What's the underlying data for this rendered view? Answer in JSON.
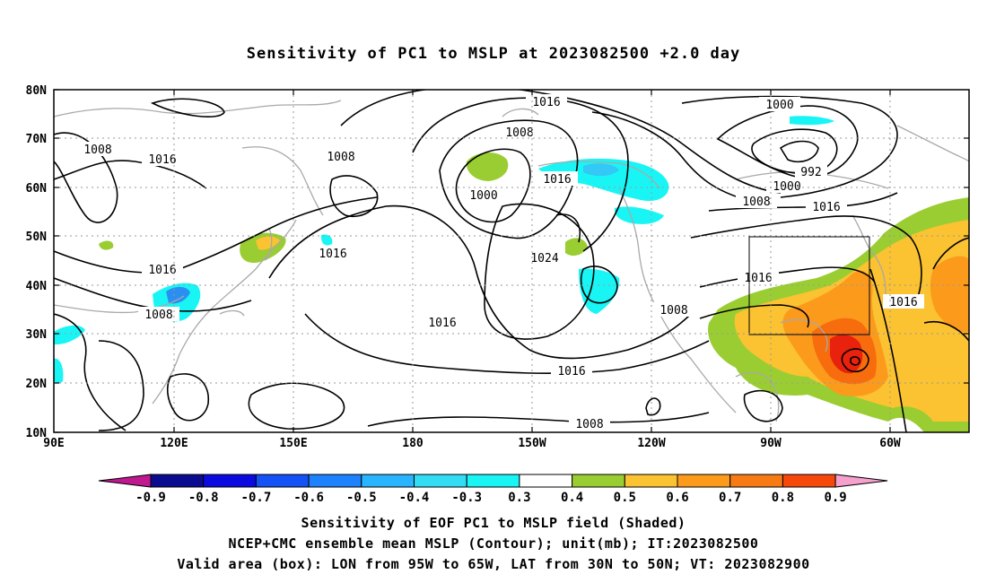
{
  "title": "Sensitivity of PC1 to MSLP at 2023082500 +2.0 day",
  "map": {
    "lat_labels": [
      "80N",
      "70N",
      "60N",
      "50N",
      "40N",
      "30N",
      "20N",
      "10N"
    ],
    "lon_labels": [
      "90E",
      "120E",
      "150E",
      "180",
      "150W",
      "120W",
      "90W",
      "60W"
    ],
    "contour_labels": [
      "1008",
      "1016",
      "1008",
      "1016",
      "1008",
      "1016",
      "1016",
      "1008",
      "1000",
      "1016",
      "1024",
      "1016",
      "1016",
      "1008",
      "1008",
      "1000",
      "992",
      "1000",
      "1008",
      "1016",
      "1016",
      "1016"
    ],
    "colors": {
      "green": "#9acd32",
      "yellow": "#fbc232",
      "orange": "#fc9a1c",
      "red_orange": "#f76c0d",
      "red": "#e8220c",
      "cyan": "#19f5f5",
      "sky": "#33c8f5",
      "blue": "#2a8ff0",
      "coast": "#a9a9a9"
    }
  },
  "colorbar": {
    "ticks": [
      "-0.9",
      "-0.8",
      "-0.7",
      "-0.6",
      "-0.5",
      "-0.4",
      "-0.3",
      "0.3",
      "0.4",
      "0.5",
      "0.6",
      "0.7",
      "0.8",
      "0.9"
    ],
    "low_end_color": "#c0188f",
    "high_end_color": "#f6a0ce",
    "colors": [
      "#0b0b90",
      "#0b0be0",
      "#1452f5",
      "#1e82ff",
      "#28b4ff",
      "#32dcf5",
      "#19f5f5",
      "#ffffff",
      "#9acd32",
      "#fbc232",
      "#fc9a1c",
      "#f77a14",
      "#f7480c",
      "#ff1414"
    ]
  },
  "captions": {
    "line1": "Sensitivity of EOF PC1 to MSLP field (Shaded)",
    "line2": "NCEP+CMC ensemble mean MSLP (Contour); unit(mb); IT:2023082500",
    "line3": "Valid area (box): LON from 95W to 65W, LAT from 30N to 50N; VT: 2023082900"
  }
}
